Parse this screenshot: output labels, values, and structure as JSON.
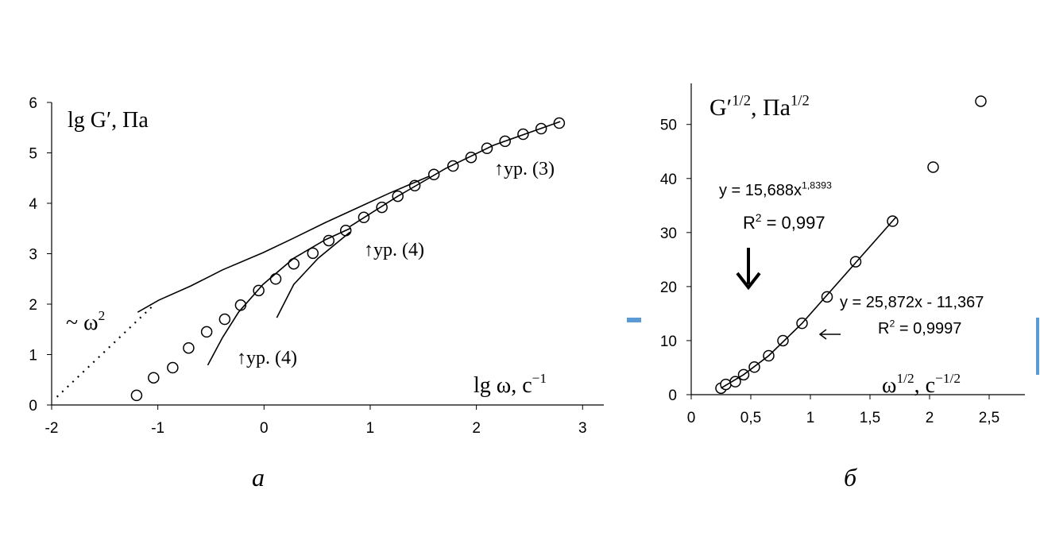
{
  "chart_data": [
    {
      "type": "scatter",
      "caption": "а",
      "xlim": [
        -2,
        3.2
      ],
      "ylim": [
        0,
        6
      ],
      "xticks": [
        -2,
        -1,
        0,
        1,
        2,
        3
      ],
      "yticks": [
        0,
        1,
        2,
        3,
        4,
        5,
        6
      ],
      "annotations": [
        [
          "lg G′, Па"
        ],
        [
          "~ ω",
          "2"
        ],
        [
          "↑ур. (4)"
        ],
        [
          "↑ур. (4)"
        ],
        [
          "↑ур. (3)"
        ],
        [
          "lg ω, с",
          "−1"
        ]
      ],
      "series": [
        {
          "mode": "markers",
          "color": "#000000",
          "x": [
            -1.2,
            -1.04,
            -0.86,
            -0.71,
            -0.54,
            -0.37,
            -0.22,
            -0.05,
            0.11,
            0.28,
            0.46,
            0.61,
            0.77,
            0.94,
            1.11,
            1.26,
            1.42,
            1.6,
            1.78,
            1.95,
            2.1,
            2.27,
            2.44,
            2.61,
            2.78
          ],
          "values": [
            0.19,
            0.54,
            0.74,
            1.13,
            1.45,
            1.7,
            1.98,
            2.27,
            2.5,
            2.8,
            3.01,
            3.26,
            3.46,
            3.72,
            3.92,
            4.14,
            4.35,
            4.57,
            4.74,
            4.91,
            5.09,
            5.23,
            5.37,
            5.48,
            5.59
          ]
        },
        {
          "mode": "line",
          "color": "#000000",
          "x": [
            -1.19,
            -0.99,
            -0.69,
            -0.39,
            -0.01,
            0.28,
            0.58,
            0.88,
            1.18,
            1.56
          ],
          "values": [
            1.84,
            2.08,
            2.36,
            2.68,
            3.02,
            3.31,
            3.62,
            3.91,
            4.2,
            4.54
          ]
        },
        {
          "mode": "line",
          "color": "#000000",
          "x": [
            0.81,
            1.26,
            1.71,
            2.16,
            2.79
          ],
          "values": [
            3.54,
            4.14,
            4.69,
            5.15,
            5.62
          ]
        },
        {
          "mode": "line",
          "color": "#000000",
          "x": [
            -0.53,
            -0.39,
            -0.24,
            -0.01,
            0.28,
            0.58,
            0.81
          ],
          "values": [
            0.79,
            1.34,
            1.84,
            2.39,
            2.91,
            3.28,
            3.5
          ]
        },
        {
          "mode": "line",
          "color": "#000000",
          "x": [
            0.12,
            0.28,
            0.51,
            0.81
          ],
          "values": [
            1.73,
            2.39,
            2.91,
            3.43
          ]
        },
        {
          "mode": "dotted",
          "color": "#000000",
          "x": [
            -1.95,
            -1.03
          ],
          "values": [
            0.16,
            2.0
          ]
        }
      ]
    },
    {
      "type": "scatter",
      "caption": "б",
      "xlim": [
        0,
        2.8
      ],
      "ylim": [
        0,
        57.6
      ],
      "xticks": [
        0,
        {
          "value": 0.5,
          "label": "0,5"
        },
        1,
        {
          "value": 1.5,
          "label": "1,5"
        },
        2,
        {
          "value": 2.5,
          "label": "2,5"
        }
      ],
      "yticks": [
        0,
        10,
        20,
        30,
        40,
        50
      ],
      "annotations": [
        [
          "G′",
          "1/2",
          ", Па",
          "1/2"
        ],
        [
          "y = 15,688x",
          "1,8393"
        ],
        [
          "R",
          "2",
          " = 0,997"
        ],
        [
          "y = 25,872x - 11,367"
        ],
        [
          "R",
          "2",
          " = 0,9997"
        ],
        [
          "ω",
          "1/2",
          ", с",
          "−1/2"
        ]
      ],
      "series": [
        {
          "mode": "markers",
          "color": "#000000",
          "x": [
            0.25,
            0.29,
            0.37,
            0.44,
            0.53,
            0.65,
            0.77,
            0.93,
            1.14,
            1.38,
            1.69,
            2.03,
            2.43
          ],
          "values": [
            1.2,
            1.9,
            2.4,
            3.7,
            5.1,
            7.2,
            10.0,
            13.2,
            18.1,
            24.6,
            32.1,
            42.1,
            54.3
          ]
        },
        {
          "mode": "line",
          "color": "#000000",
          "x": [
            0.25,
            0.44,
            0.65,
            0.93,
            1.72
          ],
          "values": [
            1.2,
            3.7,
            7.2,
            13.2,
            32.9
          ]
        }
      ]
    }
  ]
}
